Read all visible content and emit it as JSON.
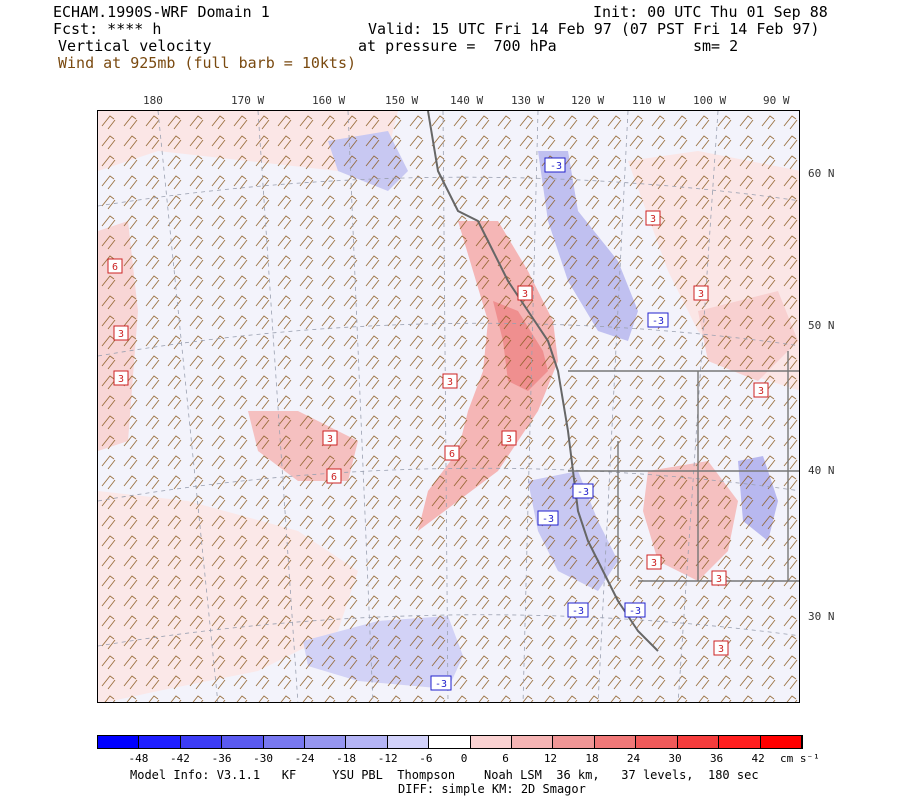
{
  "header": {
    "model_title": "ECHAM.1990S-WRF Domain 1",
    "init": "Init: 00 UTC Thu 01 Sep 88",
    "fcst": "Fcst: **** h",
    "valid": "Valid: 15 UTC Fri 14 Feb 97 (07 PST Fri 14 Feb 97)",
    "field": "Vertical velocity",
    "pressure": "at pressure =  700 hPa",
    "smooth": "sm= 2",
    "wind": "Wind at 925mb (full barb = 10kts)"
  },
  "axes": {
    "lon_labels": [
      "180",
      "170 W",
      "160 W",
      "150 W",
      "140 W",
      "130 W",
      "120 W",
      "110 W",
      "100 W",
      "90 W"
    ],
    "lat_labels": [
      "60 N",
      "50 N",
      "40 N",
      "30 N"
    ]
  },
  "contour_labels": [
    "-3",
    "3",
    "3",
    "3",
    "3",
    "3",
    "3",
    "3",
    "3",
    "3",
    "3",
    "3",
    "6",
    "6",
    "6",
    "-3",
    "-3",
    "-3",
    "-3",
    "-3",
    "-3",
    "3"
  ],
  "colorbar": {
    "values": [
      "-48",
      "-42",
      "-36",
      "-30",
      "-24",
      "-18",
      "-12",
      "-6",
      "0",
      "6",
      "12",
      "18",
      "24",
      "30",
      "36",
      "42"
    ],
    "units": "cm s⁻¹",
    "colors": [
      "#0000ff",
      "#1e1eff",
      "#3c3cf5",
      "#5a5af0",
      "#7878f0",
      "#9696f0",
      "#b4b4f5",
      "#d2d2fa",
      "#ffffff",
      "#fad2d2",
      "#f5b4b4",
      "#f09696",
      "#f07878",
      "#f05a5a",
      "#f53c3c",
      "#ff1e1e",
      "#ff0000"
    ]
  },
  "footer": {
    "model_info": "Model Info: V3.1.1   KF     YSU PBL  Thompson    Noah LSM  36 km,   37 levels,  180 sec",
    "diff": "DIFF: simple KM: 2D Smagor"
  }
}
